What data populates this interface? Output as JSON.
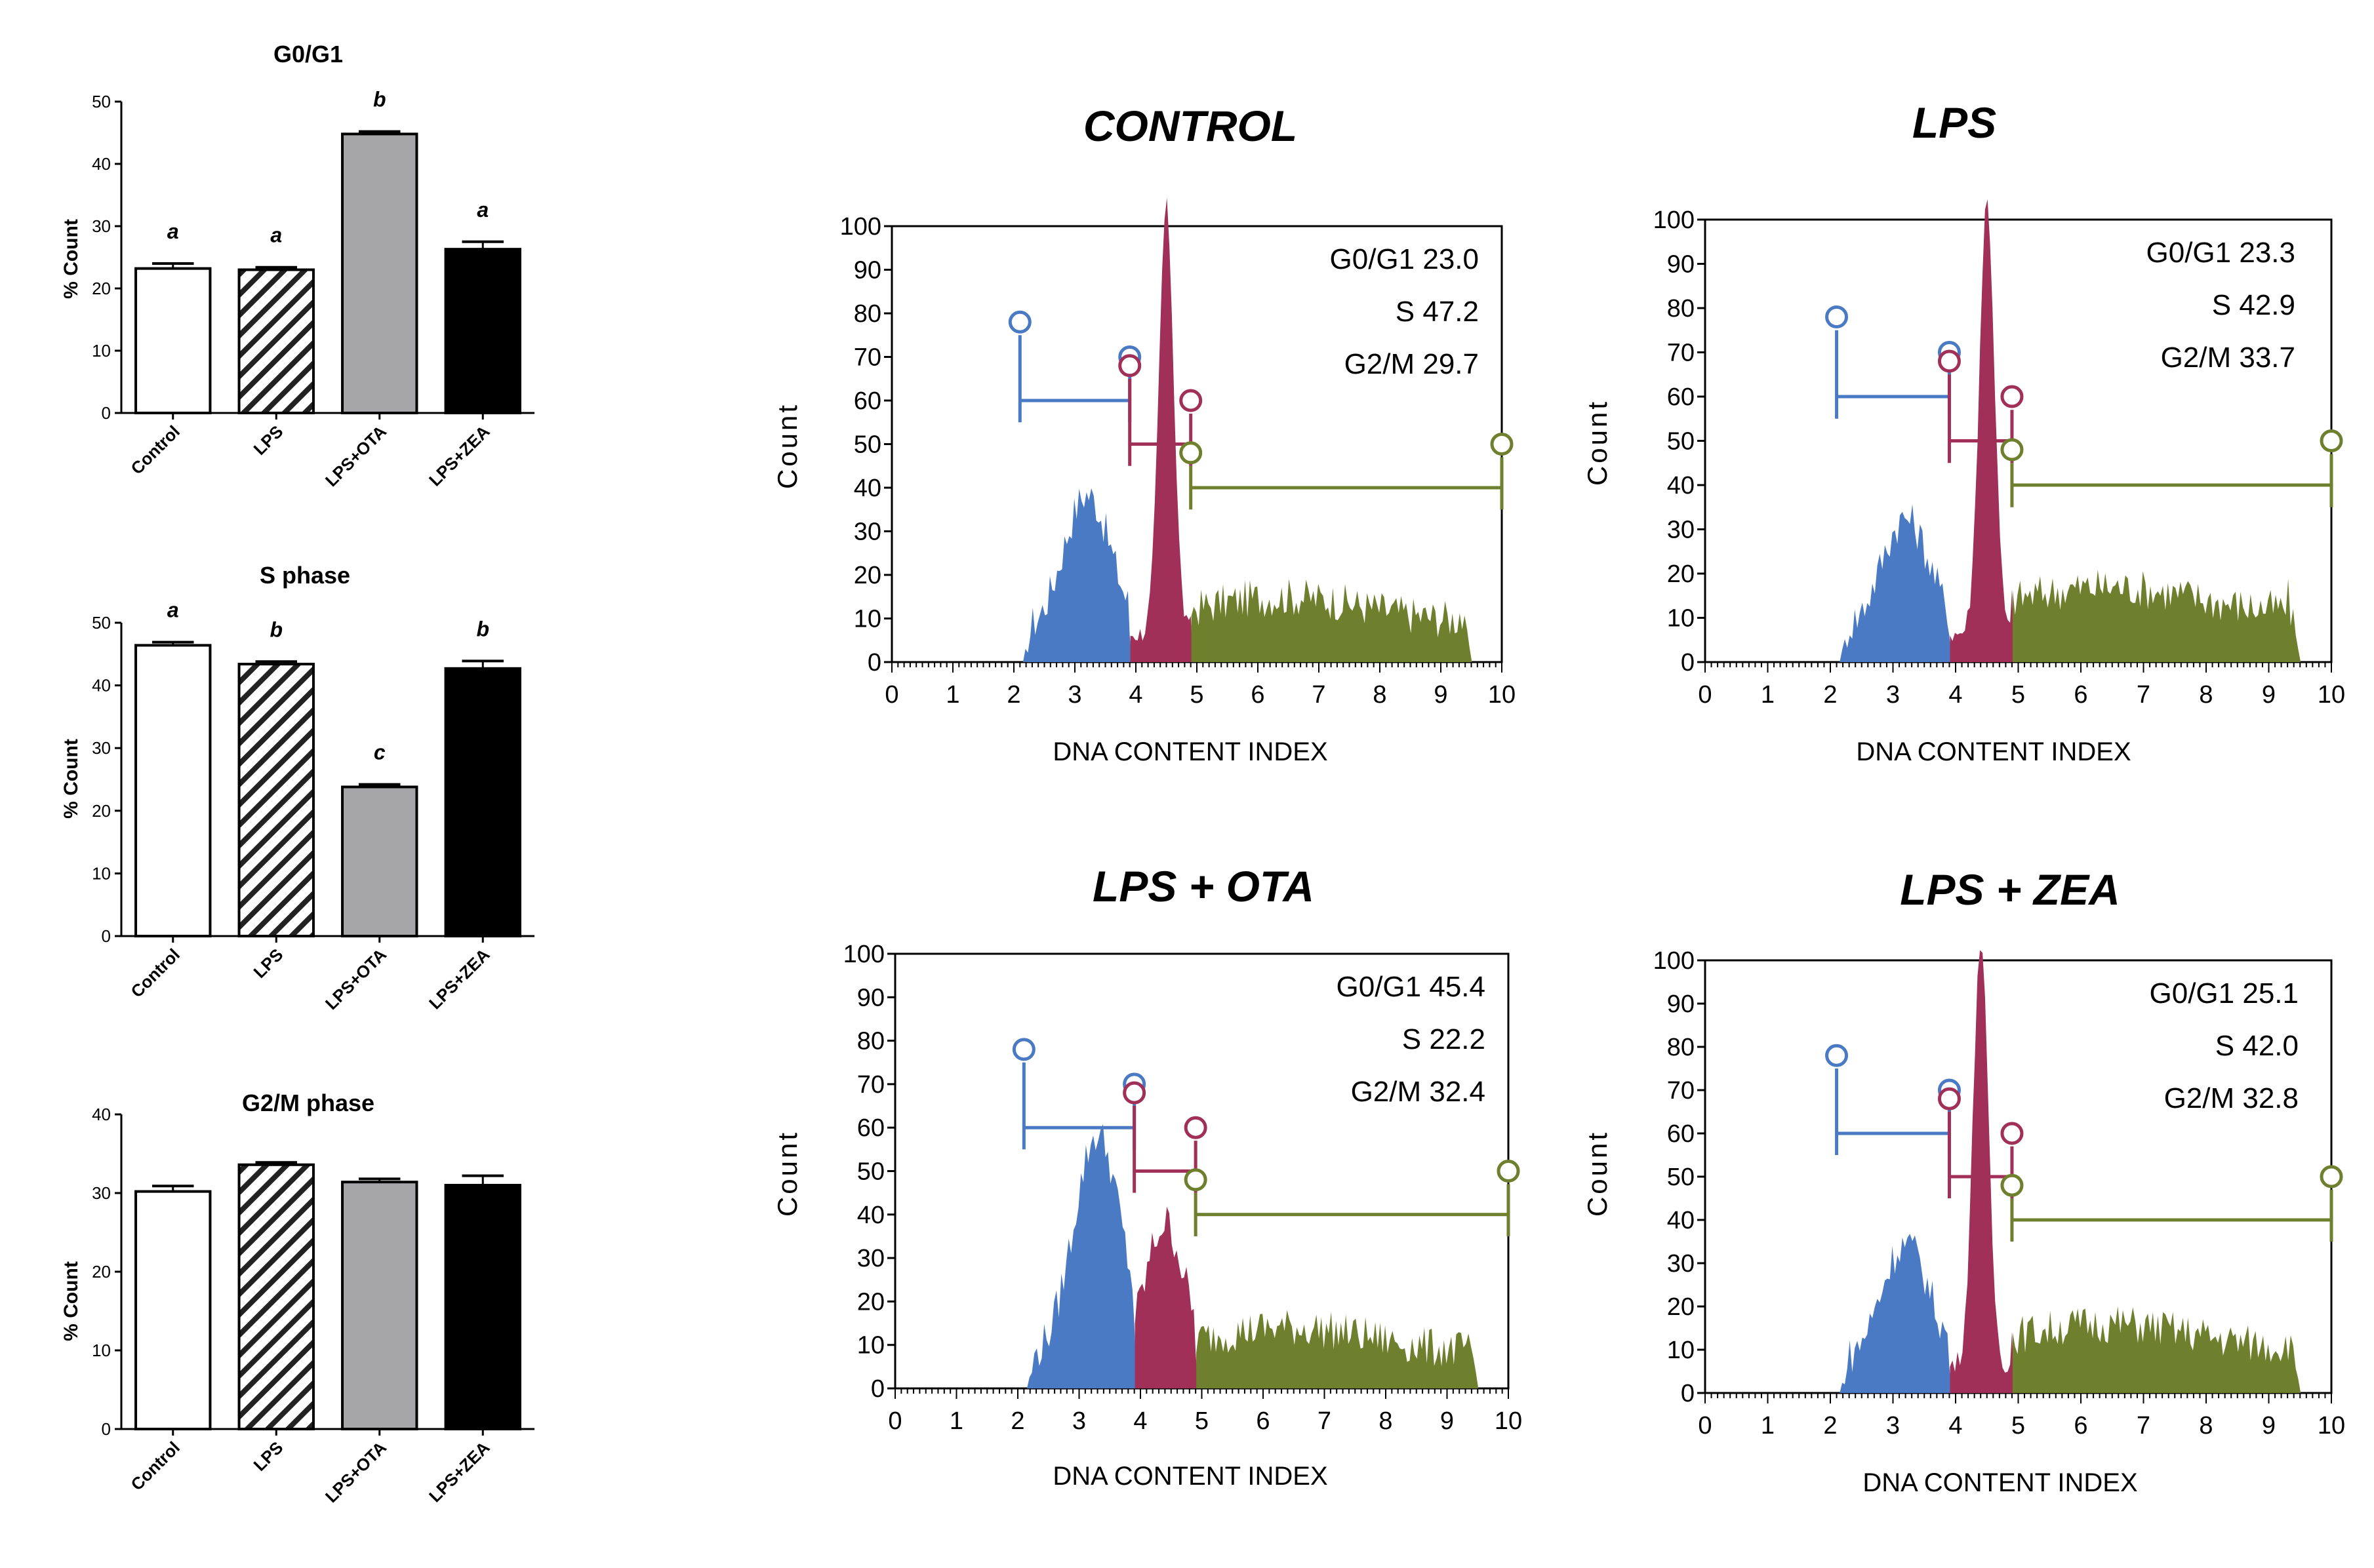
{
  "colors": {
    "axis": "#000000",
    "bar_lps_stroke": "#000000",
    "bar_ota_fill": "#a6a6a9",
    "bar_zea_fill": "#000000",
    "bar_control_fill": "#ffffff",
    "g1_blue": "#4a7ac4",
    "g2_red": "#a03058",
    "s_green": "#6e7f2e"
  },
  "chart_data": [
    {
      "type": "bar",
      "title": "G0/G1",
      "ylabel": "% Count",
      "ylim": [
        0,
        50
      ],
      "yticks": [
        "0",
        "10",
        "20",
        "30",
        "40",
        "50"
      ],
      "categories": [
        "Control",
        "LPS",
        "LPS+OTA",
        "LPS+ZEA"
      ],
      "values": [
        23.2,
        23.0,
        44.8,
        26.3
      ],
      "errors": [
        0.8,
        0.4,
        0.4,
        1.2
      ],
      "letters": [
        "a",
        "a",
        "b",
        "a"
      ]
    },
    {
      "type": "bar",
      "title": "S phase",
      "ylabel": "% Count",
      "ylim": [
        0,
        50
      ],
      "yticks": [
        "0",
        "10",
        "20",
        "30",
        "40",
        "50"
      ],
      "categories": [
        "Control",
        "LPS",
        "LPS+OTA",
        "LPS+ZEA"
      ],
      "values": [
        46.4,
        43.4,
        23.8,
        42.7
      ],
      "errors": [
        0.5,
        0.4,
        0.4,
        1.2
      ],
      "letters": [
        "a",
        "b",
        "c",
        "b"
      ]
    },
    {
      "type": "bar",
      "title": "G2/M phase",
      "ylabel": "% Count",
      "ylim": [
        0,
        40
      ],
      "yticks": [
        "0",
        "10",
        "20",
        "30",
        "40"
      ],
      "categories": [
        "Control",
        "LPS",
        "LPS+OTA",
        "LPS+ZEA"
      ],
      "values": [
        30.2,
        33.6,
        31.4,
        31.0
      ],
      "errors": [
        0.7,
        0.3,
        0.4,
        1.2
      ],
      "letters": [
        "",
        "",
        "",
        ""
      ]
    },
    {
      "type": "area",
      "title": "CONTROL",
      "xlabel": "DNA CONTENT INDEX",
      "ylabel": "Count",
      "xlim": [
        0,
        10
      ],
      "ylim": [
        0,
        100
      ],
      "xticks": [
        "0",
        "1",
        "2",
        "3",
        "4",
        "5",
        "6",
        "7",
        "8",
        "9",
        "10"
      ],
      "yticks": [
        "0",
        "10",
        "20",
        "30",
        "40",
        "50",
        "60",
        "70",
        "80",
        "90",
        "100"
      ],
      "g1": "G0/G1 23.0",
      "s": "S 47.2",
      "g2m": "G2/M 29.7",
      "profile": {
        "peak_x": 4.5,
        "blue_peak": 32,
        "red_x": [
          3.9,
          4.9
        ],
        "green_level": 12,
        "green_end": 9.5,
        "g2_secondary": 0
      },
      "markers": {
        "blue_start": 2.1,
        "blue_end": 3.9,
        "blue_y": 60,
        "red_end": 4.9,
        "red_y": 50,
        "green_end": 10,
        "green_y": 40
      }
    },
    {
      "type": "area",
      "title": "LPS",
      "xlabel": "DNA CONTENT INDEX",
      "ylabel": "Count",
      "xlim": [
        0,
        10
      ],
      "ylim": [
        0,
        100
      ],
      "xticks": [
        "0",
        "1",
        "2",
        "3",
        "4",
        "5",
        "6",
        "7",
        "8",
        "9",
        "10"
      ],
      "yticks": [
        "0",
        "10",
        "20",
        "30",
        "40",
        "50",
        "60",
        "70",
        "80",
        "90",
        "100"
      ],
      "g1": "G0/G1 23.3",
      "s": "S 42.9",
      "g2m": "G2/M 33.7",
      "profile": {
        "peak_x": 4.5,
        "blue_peak": 26,
        "red_x": [
          3.9,
          4.9
        ],
        "green_level": 14,
        "green_end": 9.5,
        "g2_secondary": 0
      },
      "markers": {
        "blue_start": 2.1,
        "blue_end": 3.9,
        "blue_y": 60,
        "red_end": 4.9,
        "red_y": 50,
        "green_end": 10,
        "green_y": 40
      }
    },
    {
      "type": "area",
      "title": "LPS + OTA",
      "xlabel": "DNA CONTENT INDEX",
      "ylabel": "Count",
      "xlim": [
        0,
        10
      ],
      "ylim": [
        0,
        100
      ],
      "xticks": [
        "0",
        "1",
        "2",
        "3",
        "4",
        "5",
        "6",
        "7",
        "8",
        "9",
        "10"
      ],
      "yticks": [
        "0",
        "10",
        "20",
        "30",
        "40",
        "50",
        "60",
        "70",
        "80",
        "90",
        "100"
      ],
      "g1": "G0/G1 45.4",
      "s": "S 22.2",
      "g2m": "G2/M 32.4",
      "profile": {
        "peak_x": 3.3,
        "blue_peak": 52,
        "red_x": [
          3.9,
          4.9
        ],
        "green_level": 11,
        "green_end": 9.5,
        "g2_secondary": 32
      },
      "markers": {
        "blue_start": 2.1,
        "blue_end": 3.9,
        "blue_y": 60,
        "red_end": 4.9,
        "red_y": 50,
        "green_end": 10,
        "green_y": 40
      }
    },
    {
      "type": "area",
      "title": "LPS + ZEA",
      "xlabel": "DNA CONTENT INDEX",
      "ylabel": "Count",
      "xlim": [
        0,
        10
      ],
      "ylim": [
        0,
        100
      ],
      "xticks": [
        "0",
        "1",
        "2",
        "3",
        "4",
        "5",
        "6",
        "7",
        "8",
        "9",
        "10"
      ],
      "yticks": [
        "0",
        "10",
        "20",
        "30",
        "40",
        "50",
        "60",
        "70",
        "80",
        "90",
        "100"
      ],
      "g1": "G0/G1 25.1",
      "s": "S 42.0",
      "g2m": "G2/M 32.8",
      "profile": {
        "peak_x": 4.4,
        "blue_peak": 28,
        "red_x": [
          3.9,
          4.9
        ],
        "green_level": 13,
        "green_end": 9.5,
        "g2_secondary": 0
      },
      "markers": {
        "blue_start": 2.1,
        "blue_end": 3.9,
        "blue_y": 60,
        "red_end": 4.9,
        "red_y": 50,
        "green_end": 10,
        "green_y": 40
      }
    }
  ]
}
